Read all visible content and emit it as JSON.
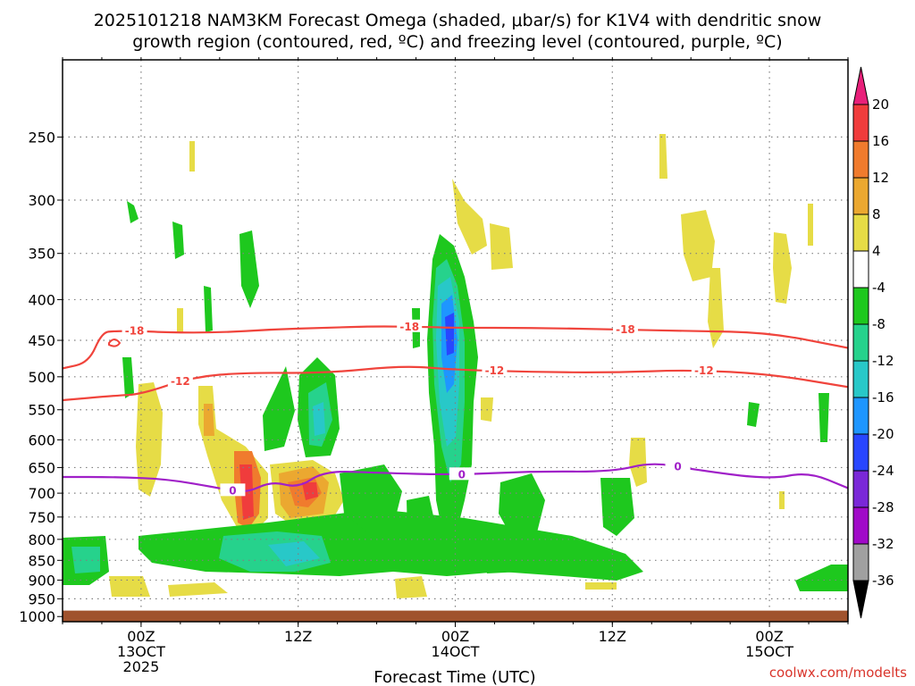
{
  "title_lines": [
    "2025101218 NAM3KM Forecast Omega (shaded, μbar/s) for K1V4 with dendritic snow",
    "growth region (contoured, red, ºC) and freezing level (contoured, purple, ºC)"
  ],
  "credit": "coolwx.com/modelts",
  "colors": {
    "red_contour": "#f0443c",
    "purple_contour": "#a020c8",
    "ground": "#a0522d",
    "grid": "#808080"
  },
  "chart_data": {
    "type": "heatmap",
    "xlabel": "Forecast Time (UTC)",
    "ylabel": "",
    "y_scale": "log-pressure",
    "y_ticks": [
      250,
      300,
      350,
      400,
      450,
      500,
      550,
      600,
      650,
      700,
      750,
      800,
      850,
      900,
      950,
      1000
    ],
    "x_ticks": [
      {
        "hour": 6,
        "lines": [
          "00Z",
          "13OCT",
          "2025"
        ]
      },
      {
        "hour": 18,
        "lines": [
          "12Z"
        ]
      },
      {
        "hour": 30,
        "lines": [
          "00Z",
          "14OCT"
        ]
      },
      {
        "hour": 42,
        "lines": [
          "12Z"
        ]
      },
      {
        "hour": 54,
        "lines": [
          "00Z",
          "15OCT"
        ]
      }
    ],
    "xlim_hours": [
      0,
      60
    ],
    "ylim_hpa": [
      200,
      1015
    ],
    "surface_hpa": 983,
    "colorbar": {
      "unit": "μbar/s",
      "labels": [
        "20",
        "16",
        "12",
        "8",
        "4",
        "-4",
        "-8",
        "-12",
        "-16",
        "-20",
        "-24",
        "-28",
        "-32",
        "-36"
      ],
      "bins": [
        {
          "range": "> 20",
          "color": "#e8207a"
        },
        {
          "range": "16 to 20",
          "color": "#f03c3c"
        },
        {
          "range": "12 to 16",
          "color": "#f07b2d"
        },
        {
          "range": "8 to 12",
          "color": "#eba830"
        },
        {
          "range": "4 to 8",
          "color": "#e6dc46"
        },
        {
          "range": "-4 to 4",
          "color": "#ffffff"
        },
        {
          "range": "-8 to -4",
          "color": "#1ec81e"
        },
        {
          "range": "-12 to -8",
          "color": "#26d28c"
        },
        {
          "range": "-16 to -12",
          "color": "#28c8c8"
        },
        {
          "range": "-20 to -16",
          "color": "#1e96ff"
        },
        {
          "range": "-24 to -20",
          "color": "#2846ff"
        },
        {
          "range": "-28 to -24",
          "color": "#7a28d8"
        },
        {
          "range": "-32 to -28",
          "color": "#a00ac8"
        },
        {
          "range": "-36 to -32",
          "color": "#a0a0a0"
        },
        {
          "range": "< -36",
          "color": "#000000"
        }
      ]
    },
    "contours": [
      {
        "name": "-18 °C",
        "label": "-18",
        "color": "#f0443c",
        "hours": [
          0,
          2,
          3,
          4,
          6,
          8,
          12,
          16,
          20,
          24,
          28,
          30,
          36,
          42,
          48,
          54,
          60
        ],
        "hpa": [
          488,
          480,
          440,
          438,
          438,
          440,
          440,
          436,
          434,
          432,
          433,
          434,
          434,
          436,
          438,
          440,
          460
        ]
      },
      {
        "name": "-12 °C",
        "label": "-12",
        "color": "#f0443c",
        "hours": [
          0,
          4,
          6,
          10,
          14,
          20,
          26,
          30,
          36,
          42,
          48,
          54,
          60
        ],
        "hpa": [
          535,
          528,
          526,
          500,
          494,
          495,
          484,
          490,
          493,
          494,
          490,
          496,
          515
        ]
      },
      {
        "name": "0 °C",
        "label": "0",
        "color": "#a020c8",
        "hours": [
          0,
          4,
          8,
          12,
          14,
          16,
          18,
          20,
          24,
          30,
          36,
          42,
          45,
          48,
          54,
          57,
          60
        ],
        "hpa": [
          668,
          668,
          672,
          690,
          700,
          676,
          690,
          656,
          660,
          664,
          657,
          658,
          640,
          653,
          673,
          658,
          690
        ]
      }
    ],
    "features": [
      {
        "name": "ascent-core",
        "hour": 30,
        "hpa": 450,
        "omega": -28
      },
      {
        "name": "ascent-column",
        "hour": 30,
        "hpa": 520,
        "omega": -16
      },
      {
        "name": "descent-max-a",
        "hour": 14,
        "hpa": 720,
        "omega": 20
      },
      {
        "name": "descent-max-b",
        "hour": 19,
        "hpa": 715,
        "omega": 16
      },
      {
        "name": "low-level-ascent-band",
        "hour": 20,
        "hpa": 840,
        "omega": -12
      }
    ]
  }
}
